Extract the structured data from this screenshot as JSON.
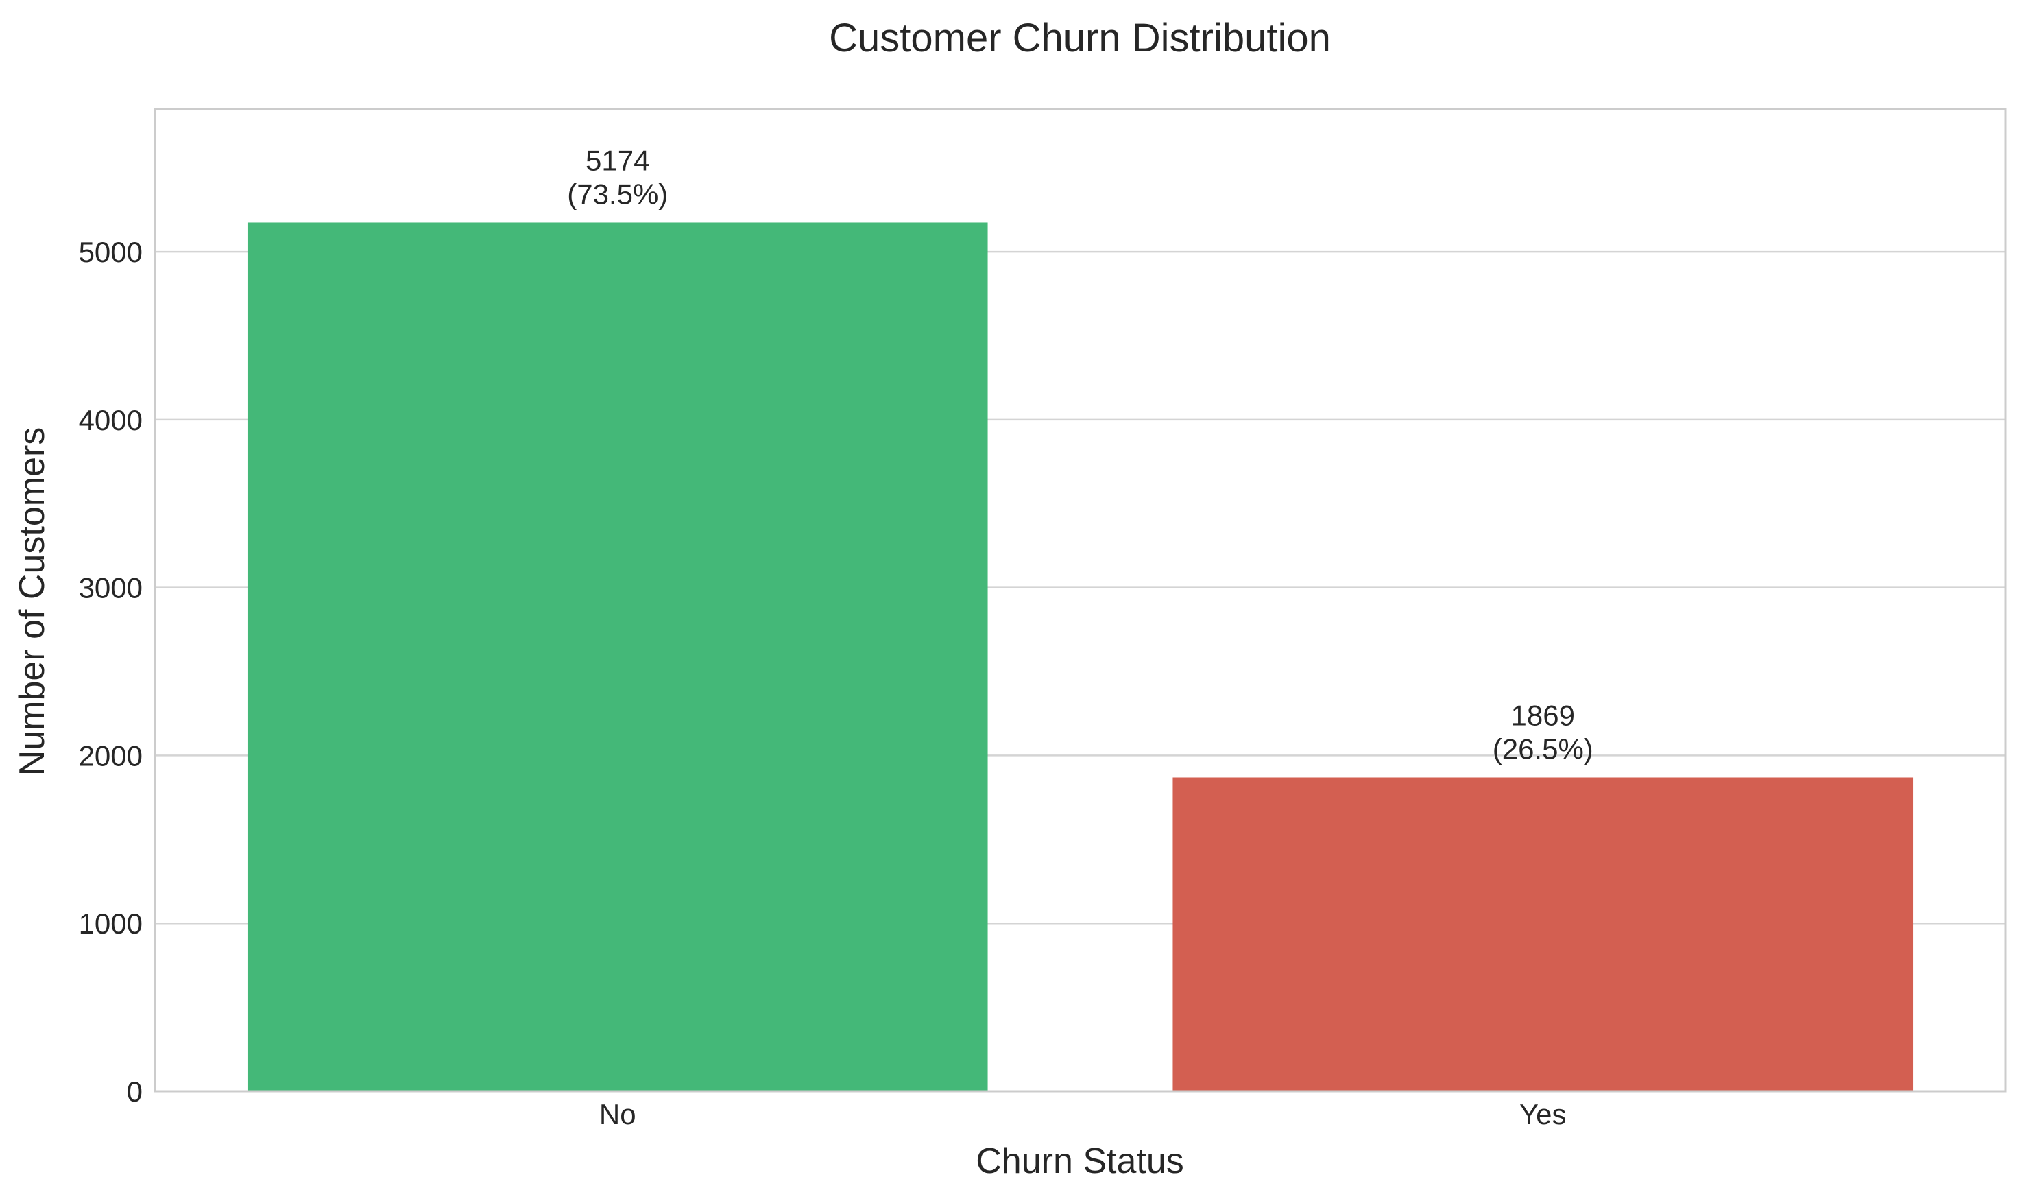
{
  "chart_data": {
    "type": "bar",
    "title": "Customer Churn Distribution",
    "xlabel": "Churn Status",
    "ylabel": "Number of Customers",
    "categories": [
      "No",
      "Yes"
    ],
    "values": [
      5174,
      1869
    ],
    "data_labels": [
      [
        "5174",
        "(73.5%)"
      ],
      [
        "1869",
        "(26.5%)"
      ]
    ],
    "colors": [
      "#44b878",
      "#d35f51"
    ],
    "ylim": [
      0,
      5850
    ],
    "yticks": [
      0,
      1000,
      2000,
      3000,
      4000,
      5000
    ],
    "ytick_labels": [
      "0",
      "1000",
      "2000",
      "3000",
      "4000",
      "5000"
    ],
    "grid": "horizontal",
    "legend": "none"
  }
}
